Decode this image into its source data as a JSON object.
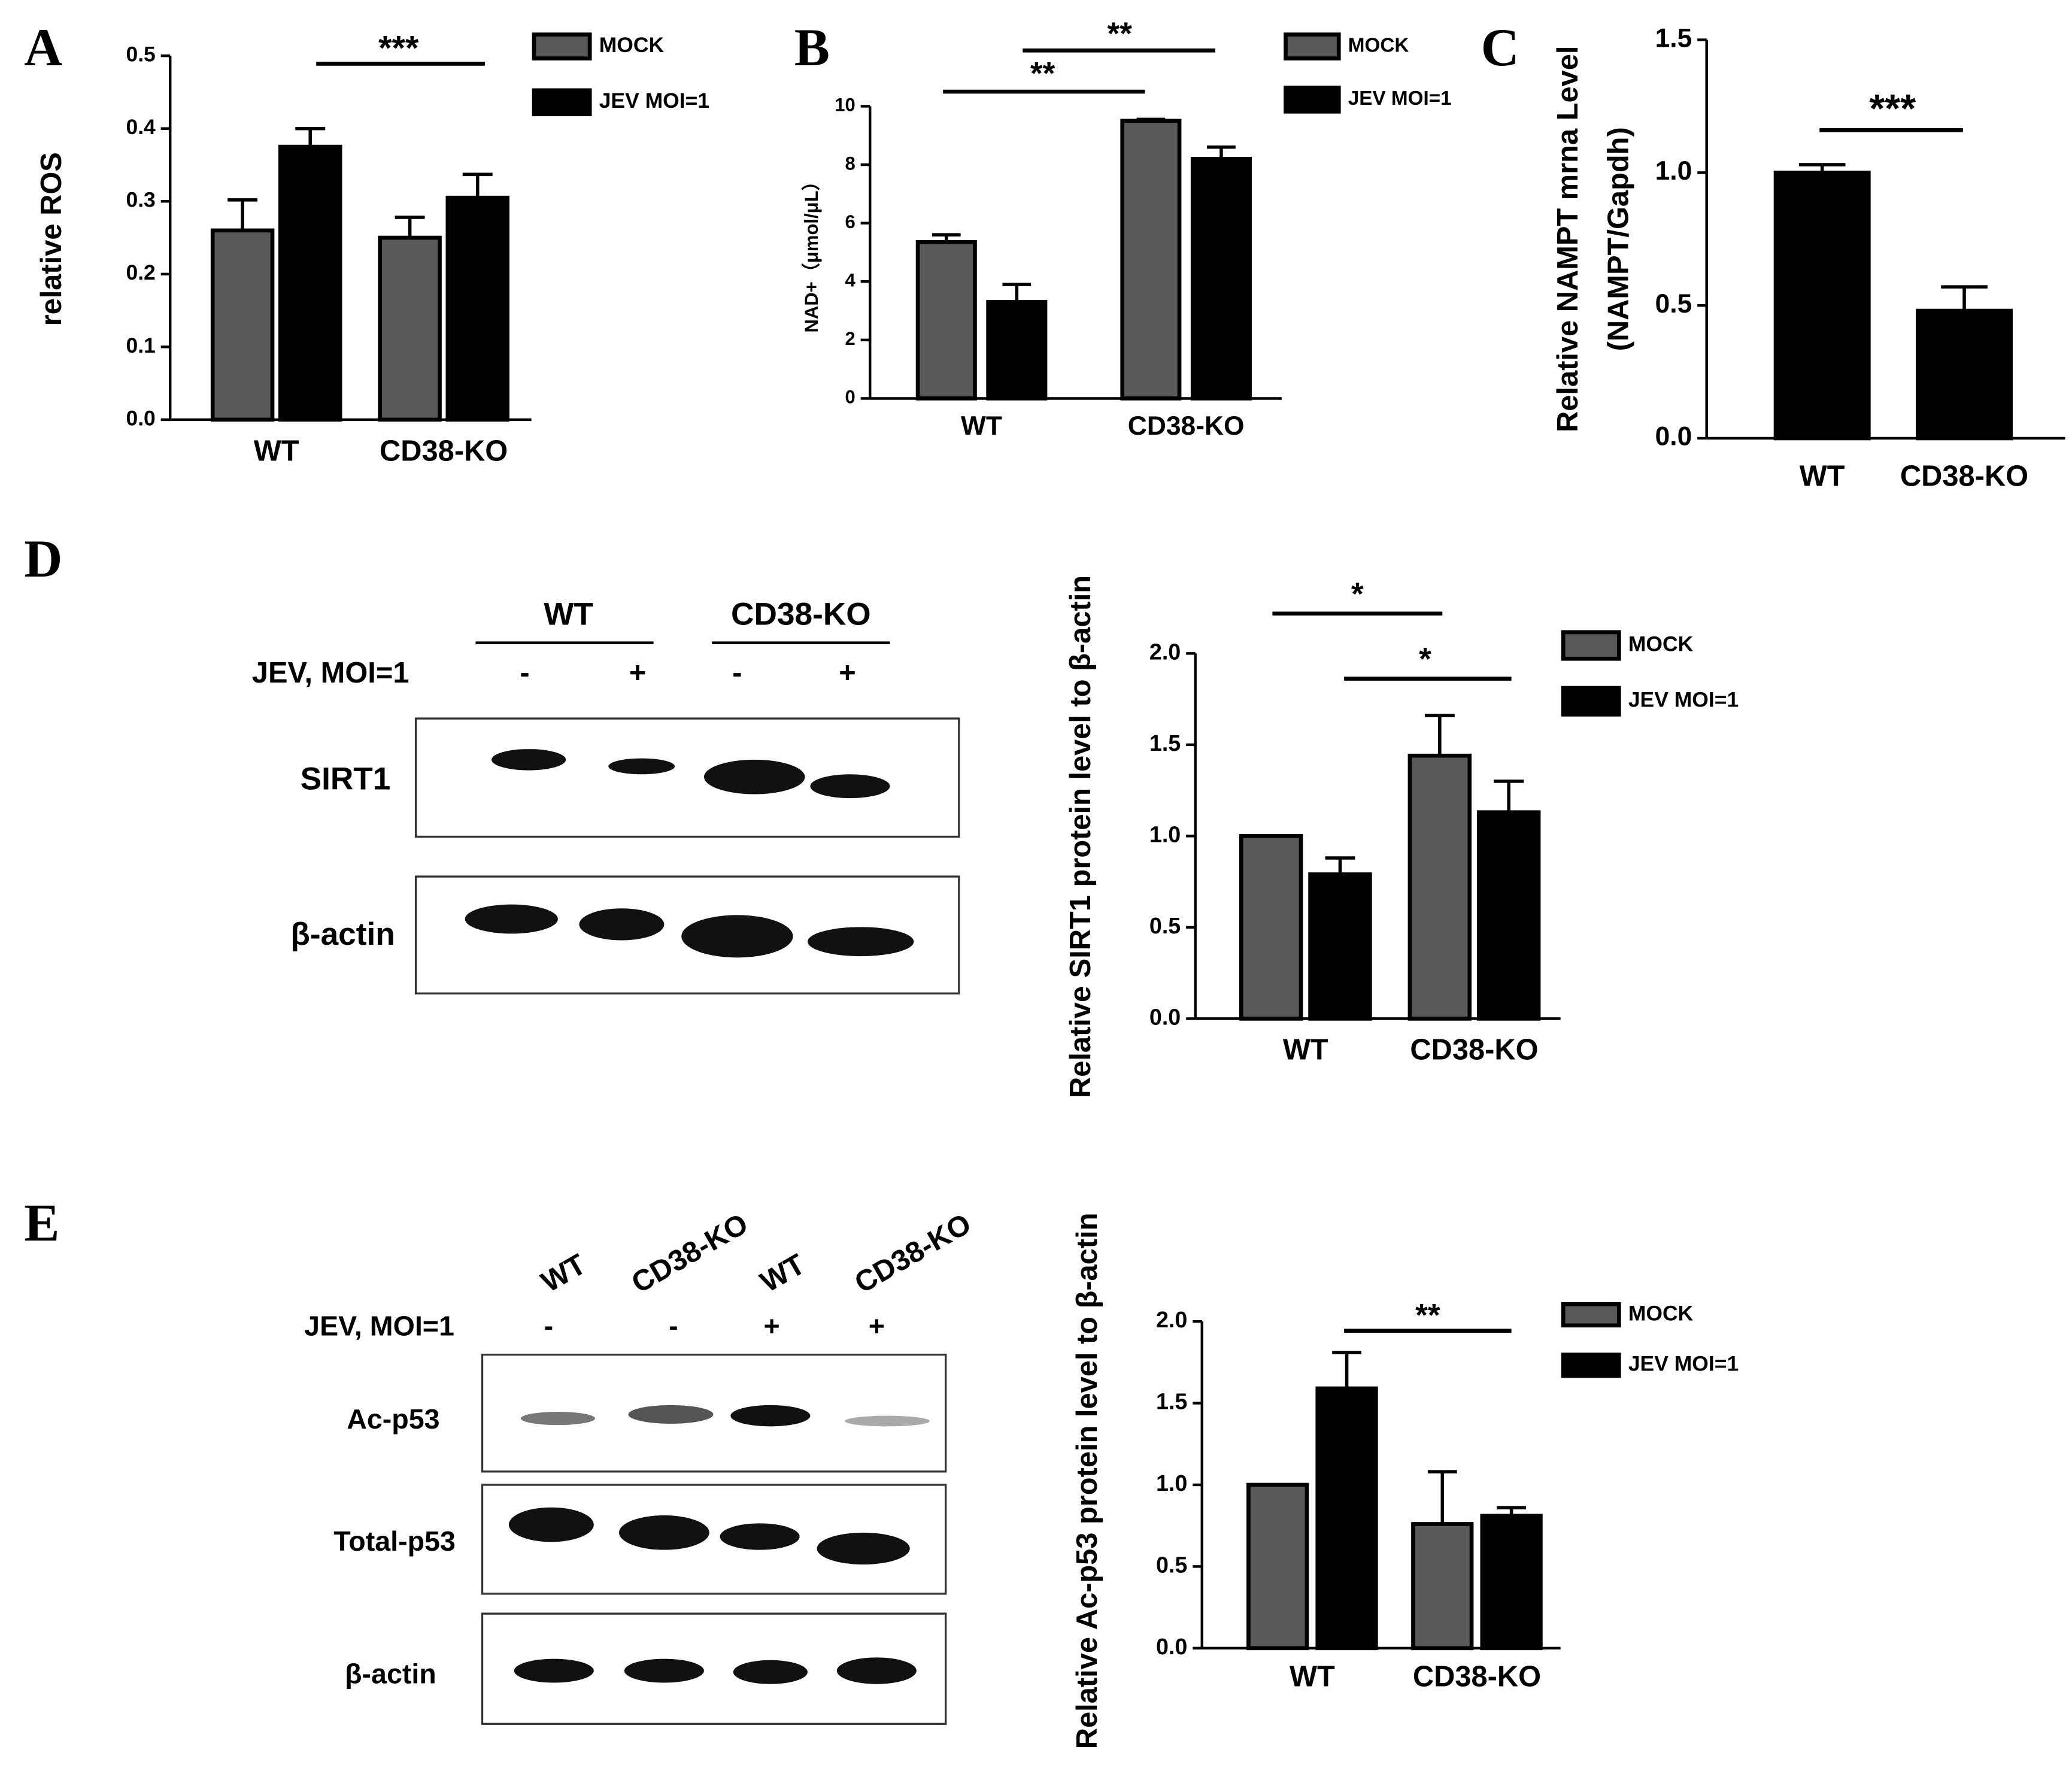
{
  "panels": [
    "A",
    "B",
    "C",
    "D",
    "E"
  ],
  "blot_d": {
    "groups": [
      "WT",
      "CD38-KO"
    ],
    "treatment_label": "JEV, MOI=1",
    "signs": [
      "-",
      "+",
      "-",
      "+"
    ],
    "rows": [
      "SIRT1",
      "β-actin"
    ]
  },
  "blot_e": {
    "lanes": [
      "WT",
      "CD38-KO",
      "WT",
      "CD38-KO"
    ],
    "treatment_label": "JEV, MOI=1",
    "signs": [
      "-",
      "-",
      "+",
      "+"
    ],
    "rows": [
      "Ac-p53",
      "Total-p53",
      "β-actin"
    ]
  },
  "chart_data": [
    {
      "type": "bar",
      "ylabel": "relative ROS",
      "categories": [
        "WT",
        "CD38-KO"
      ],
      "series": [
        {
          "name": "MOCK",
          "color": "#595959",
          "values": [
            0.26,
            0.25
          ],
          "errors": [
            0.042,
            0.028
          ]
        },
        {
          "name": "JEV MOI=1",
          "color": "#000000",
          "values": [
            0.375,
            0.305
          ],
          "errors": [
            0.025,
            0.032
          ]
        }
      ],
      "ylim": [
        0,
        0.5
      ],
      "yticks": [
        {
          "value": 0,
          "label": "0.0"
        },
        0.1,
        0.2,
        0.3,
        0.4,
        0.5
      ],
      "annotations": [
        "***"
      ]
    },
    {
      "type": "bar",
      "ylabel": "NAD+（μmol/μL）",
      "categories": [
        "WT",
        "CD38-KO"
      ],
      "series": [
        {
          "name": "MOCK",
          "color": "#595959",
          "values": [
            5.35,
            9.5
          ],
          "errors": [
            0.25,
            0.05
          ]
        },
        {
          "name": "JEV MOI=1",
          "color": "#000000",
          "values": [
            3.3,
            8.2
          ],
          "errors": [
            0.6,
            0.4
          ]
        }
      ],
      "ylim": [
        0,
        10
      ],
      "yticks": [
        0,
        2,
        4,
        6,
        8,
        10
      ],
      "annotations": [
        "**",
        "**"
      ]
    },
    {
      "type": "bar",
      "ylabel": [
        "Relative NAMPT mrna Level",
        "(NAMPT/Gapdh)"
      ],
      "categories": [
        "WT",
        "CD38-KO"
      ],
      "series": [
        {
          "color": "#000000",
          "values": [
            1.0,
            0.48
          ],
          "errors": [
            0.03,
            0.09
          ]
        }
      ],
      "ylim": [
        0,
        1.5
      ],
      "yticks": [
        {
          "value": 0,
          "label": "0.0"
        },
        0.5,
        {
          "value": 1,
          "label": "1.0"
        },
        1.5
      ],
      "annotations": [
        "***"
      ]
    },
    {
      "type": "bar",
      "ylabel": "Relative SIRT1 protein level to β-actin",
      "categories": [
        "WT",
        "CD38-KO"
      ],
      "series": [
        {
          "name": "MOCK",
          "color": "#595959",
          "values": [
            1.0,
            1.44
          ],
          "errors": [
            0,
            0.22
          ]
        },
        {
          "name": "JEV MOI=1",
          "color": "#000000",
          "values": [
            0.79,
            1.13
          ],
          "errors": [
            0.09,
            0.17
          ]
        }
      ],
      "ylim": [
        0,
        2
      ],
      "yticks": [
        {
          "value": 0,
          "label": "0.0"
        },
        0.5,
        {
          "value": 1,
          "label": "1.0"
        },
        1.5,
        {
          "value": 2,
          "label": "2.0"
        }
      ],
      "annotations": [
        "*",
        "*"
      ]
    },
    {
      "type": "bar",
      "ylabel": "Relative Ac-p53 protein level to β-actin",
      "categories": [
        "WT",
        "CD38-KO"
      ],
      "series": [
        {
          "name": "MOCK",
          "color": "#595959",
          "values": [
            1.0,
            0.76
          ],
          "errors": [
            0,
            0.32
          ]
        },
        {
          "name": "JEV MOI=1",
          "color": "#000000",
          "values": [
            1.59,
            0.81
          ],
          "errors": [
            0.22,
            0.05
          ]
        }
      ],
      "ylim": [
        0,
        2
      ],
      "yticks": [
        {
          "value": 0,
          "label": "0.0"
        },
        0.5,
        {
          "value": 1,
          "label": "1.0"
        },
        1.5,
        {
          "value": 2,
          "label": "2.0"
        }
      ],
      "annotations": [
        "**"
      ]
    }
  ]
}
